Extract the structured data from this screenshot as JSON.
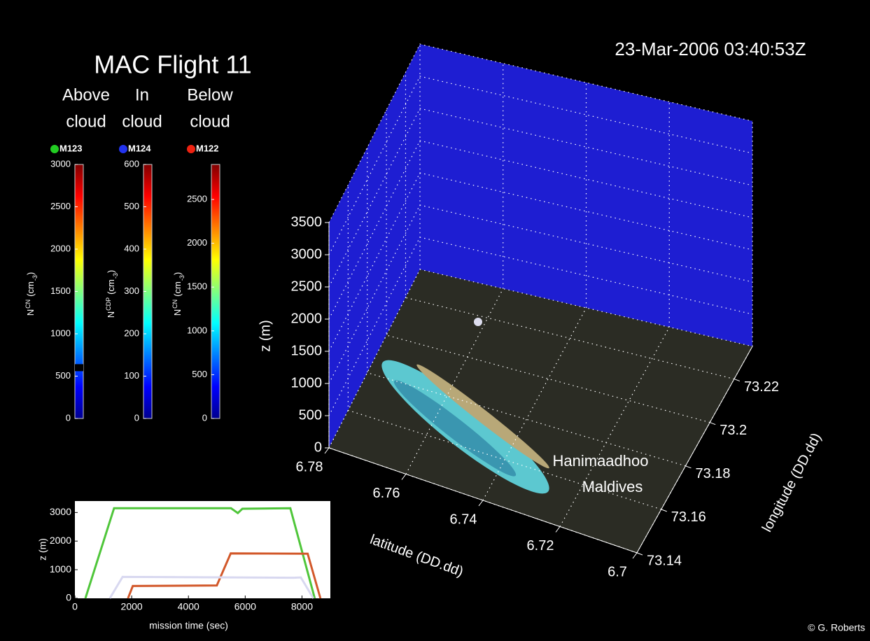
{
  "title": "MAC Flight 11",
  "timestamp": "23-Mar-2006 03:40:53Z",
  "credit": "© G. Roberts",
  "colorbars": [
    {
      "group_label": [
        "Above",
        "cloud"
      ],
      "sensor": "M123",
      "color": "#22cc22",
      "ylim": [
        0,
        3000
      ],
      "yticks": [
        0,
        500,
        1000,
        1500,
        2000,
        2500,
        3000
      ],
      "ylabel_parts": [
        "N",
        "CN",
        "(cm",
        "-3",
        ")"
      ],
      "marker": 600
    },
    {
      "group_label": [
        "In",
        "cloud"
      ],
      "sensor": "M124",
      "color": "#2233ee",
      "ylim": [
        0,
        600
      ],
      "yticks": [
        0,
        100,
        200,
        300,
        400,
        500,
        600
      ],
      "ylabel_parts": [
        "N",
        "CDP",
        "(cm",
        "-3",
        ")"
      ]
    },
    {
      "group_label": [
        "Below",
        "cloud"
      ],
      "sensor": "M122",
      "color": "#ee2211",
      "ylim": [
        0,
        2900
      ],
      "yticks": [
        0,
        500,
        1000,
        1500,
        2000,
        2500
      ],
      "ylabel_parts": [
        "N",
        "CN",
        "(cm",
        "-3",
        ")"
      ]
    }
  ],
  "chart_data": [
    {
      "type": "line",
      "xlabel": "mission time (sec)",
      "ylabel": "z (m)",
      "xlim": [
        0,
        9000
      ],
      "xticks": [
        0,
        2000,
        4000,
        6000,
        8000
      ],
      "ylim": [
        0,
        3400
      ],
      "yticks": [
        0,
        1000,
        2000,
        3000
      ],
      "series": [
        {
          "color": "#4fc63a",
          "x": [
            370,
            1380,
            5500,
            5740,
            5900,
            7590,
            8450
          ],
          "values": [
            0,
            3150,
            3150,
            2980,
            3130,
            3150,
            0
          ]
        },
        {
          "color": "#d2582a",
          "x": [
            1870,
            2040,
            5000,
            5490,
            8200,
            8650
          ],
          "values": [
            0,
            430,
            450,
            1570,
            1560,
            0
          ]
        },
        {
          "color": "#d8d8f0",
          "x": [
            1230,
            1680,
            7700,
            7960,
            8400
          ],
          "values": [
            0,
            750,
            720,
            730,
            0
          ]
        }
      ]
    },
    {
      "type": "surface3d",
      "xlabel": "latitude (DD.dd)",
      "ylabel": "longitude (DD.dd)",
      "zlabel": "z (m)",
      "xlim": [
        6.78,
        6.7
      ],
      "xticks": [
        6.78,
        6.76,
        6.74,
        6.72,
        6.7
      ],
      "ylim": [
        73.14,
        73.235
      ],
      "yticks": [
        73.14,
        73.16,
        73.18,
        73.2,
        73.22
      ],
      "zlim": [
        0,
        3500
      ],
      "zticks": [
        0,
        500,
        1000,
        1500,
        2000,
        2500,
        3000,
        3500
      ],
      "annotation": [
        "Hanimaadhoo",
        "Maldives"
      ]
    }
  ]
}
